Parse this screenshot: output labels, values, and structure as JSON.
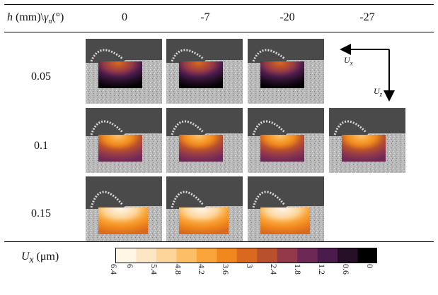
{
  "table": {
    "header_first": "h (mm)\\γn(°)",
    "columns": [
      "0",
      "-7",
      "-20",
      "-27"
    ],
    "rows": [
      {
        "label": "0.05",
        "present": [
          true,
          true,
          true,
          false
        ]
      },
      {
        "label": "0.1",
        "present": [
          true,
          true,
          true,
          true
        ]
      },
      {
        "label": "0.15",
        "present": [
          true,
          true,
          true,
          false
        ]
      }
    ]
  },
  "axes_legend": {
    "x_label": "U",
    "x_sub": "x",
    "z_label": "U",
    "z_sub": "z"
  },
  "colorbar": {
    "label_sym": "U",
    "label_sub": "x",
    "label_unit": "(μm)",
    "ticks": [
      "6.4",
      "6",
      "5.4",
      "4.8",
      "4.2",
      "3.6",
      "3",
      "2.4",
      "1.8",
      "1.2",
      "0.6",
      "0"
    ],
    "tick_values": [
      6.4,
      6.0,
      5.4,
      4.8,
      4.2,
      3.6,
      3.0,
      2.4,
      1.8,
      1.2,
      0.6,
      0.0
    ],
    "min": 0,
    "max": 6.4,
    "colors": [
      "#fff6e6",
      "#fde6c4",
      "#fdd59a",
      "#fcbf68",
      "#f9a53a",
      "#f0881d",
      "#d9691f",
      "#b8502d",
      "#94394a",
      "#6e2856",
      "#4a1c4b",
      "#240f26",
      "#000000"
    ]
  }
}
